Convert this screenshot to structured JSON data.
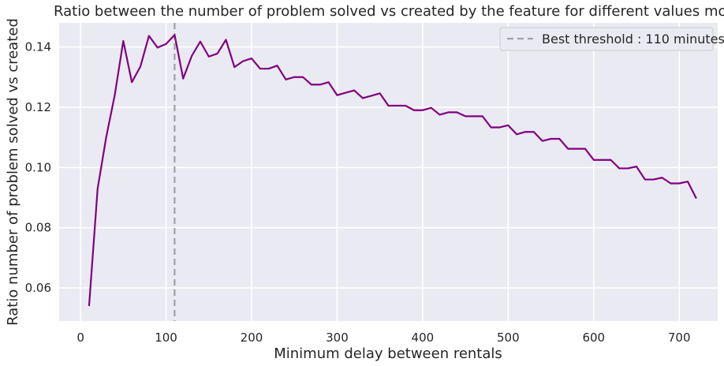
{
  "chart_data": {
    "type": "line",
    "title": "Ratio between the number of problem solved vs created by the feature for different values mobile checkin",
    "xlabel": "Minimum delay between rentals",
    "ylabel": "Ratio number of problem solved vs created",
    "xlim": [
      -25,
      745
    ],
    "ylim": [
      0.049,
      0.148
    ],
    "xticks": [
      0,
      100,
      200,
      300,
      400,
      500,
      600,
      700
    ],
    "yticks": [
      0.06,
      0.08,
      0.1,
      0.12,
      0.14
    ],
    "xtick_labels": [
      "0",
      "100",
      "200",
      "300",
      "400",
      "500",
      "600",
      "700"
    ],
    "ytick_labels": [
      "0.06",
      "0.08",
      "0.10",
      "0.12",
      "0.14"
    ],
    "grid": true,
    "legend_position": "top-right",
    "colors": {
      "line": "#800080",
      "threshold": "#a0a0a8",
      "plot_bg": "#eaeaf2",
      "grid": "#ffffff"
    },
    "series": [
      {
        "x": [
          10,
          20,
          30,
          40,
          50,
          60,
          70,
          80,
          90,
          100,
          110,
          120,
          130,
          140,
          150,
          160,
          170,
          180,
          190,
          200,
          210,
          220,
          230,
          240,
          250,
          260,
          270,
          280,
          290,
          300,
          310,
          320,
          330,
          340,
          350,
          360,
          370,
          380,
          390,
          400,
          410,
          420,
          430,
          440,
          450,
          460,
          470,
          480,
          490,
          500,
          510,
          520,
          530,
          540,
          550,
          560,
          570,
          580,
          590,
          600,
          610,
          620,
          630,
          640,
          650,
          660,
          670,
          680,
          690,
          700,
          710,
          720
        ],
        "y": [
          0.054,
          0.093,
          0.11,
          0.124,
          0.142,
          0.1283,
          0.1335,
          0.1437,
          0.1398,
          0.141,
          0.144,
          0.1295,
          0.137,
          0.1418,
          0.1368,
          0.1378,
          0.1424,
          0.1333,
          0.1353,
          0.1362,
          0.1328,
          0.1328,
          0.1338,
          0.1292,
          0.13,
          0.13,
          0.1275,
          0.1275,
          0.1283,
          0.124,
          0.1248,
          0.1256,
          0.123,
          0.1238,
          0.1246,
          0.1205,
          0.1205,
          0.1205,
          0.119,
          0.119,
          0.1198,
          0.1175,
          0.1183,
          0.1183,
          0.117,
          0.117,
          0.117,
          0.1133,
          0.1133,
          0.114,
          0.111,
          0.1118,
          0.1118,
          0.1088,
          0.1095,
          0.1095,
          0.1062,
          0.1062,
          0.1062,
          0.1025,
          0.1025,
          0.1025,
          0.0997,
          0.0997,
          0.1003,
          0.096,
          0.096,
          0.0966,
          0.0947,
          0.0947,
          0.0953,
          0.0897
        ]
      }
    ],
    "threshold": {
      "x": 110,
      "label": "Best threshold : 110 minutes"
    }
  }
}
